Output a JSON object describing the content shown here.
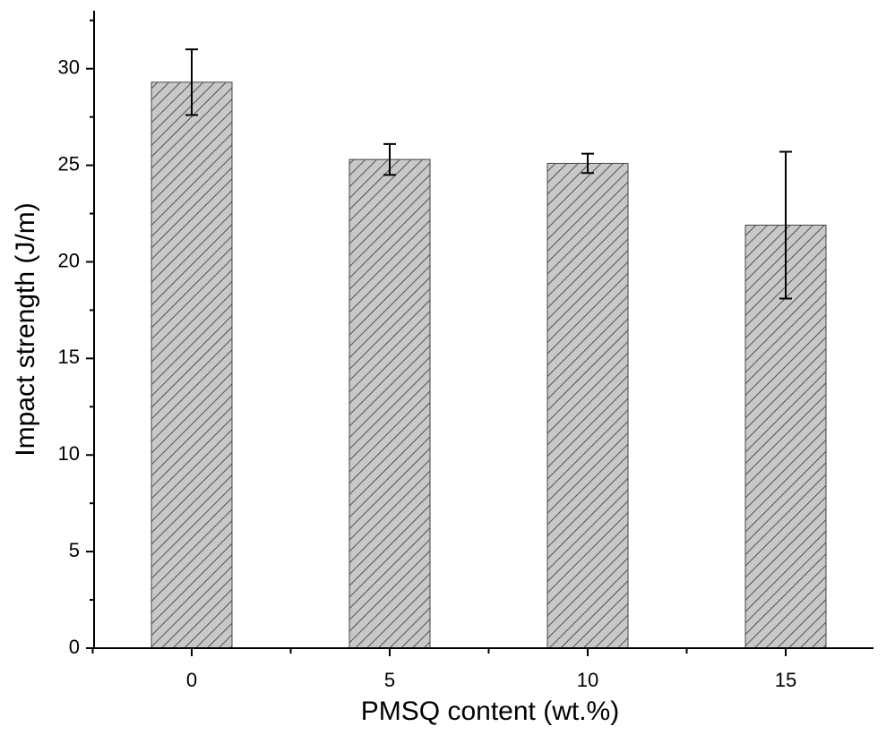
{
  "chart_data": {
    "type": "bar",
    "xlabel": "PMSQ content (wt.%)",
    "ylabel": "Impact strength (J/m)",
    "categories": [
      "0",
      "5",
      "10",
      "15"
    ],
    "values": [
      29.3,
      25.3,
      25.1,
      21.9
    ],
    "errors": [
      1.7,
      0.8,
      0.5,
      3.8
    ],
    "color": "#c8c8c8",
    "ylim": [
      0,
      33
    ],
    "yticks": [
      0,
      5,
      10,
      15,
      20,
      25,
      30
    ],
    "grid": false
  }
}
